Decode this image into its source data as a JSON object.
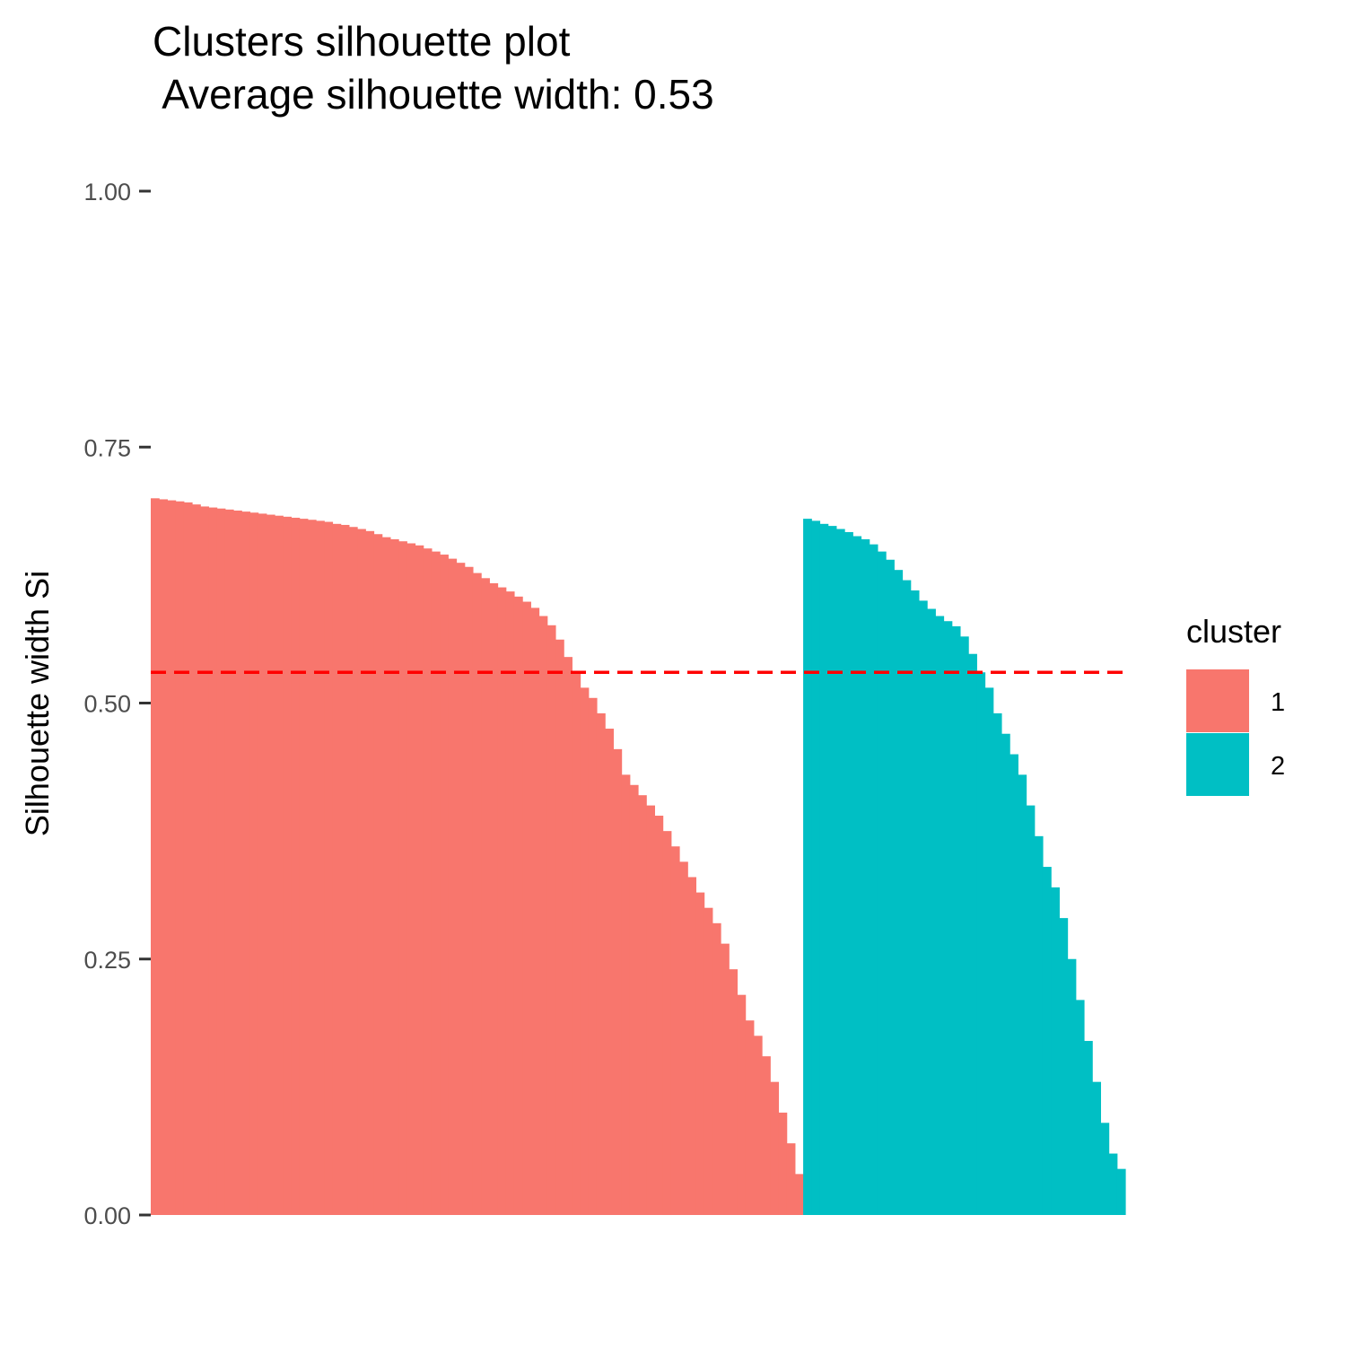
{
  "chart_data": {
    "type": "bar",
    "title": "Clusters silhouette plot",
    "subtitle": "Average silhouette width: 0.53",
    "xlabel": "",
    "ylabel": "Silhouette width Si",
    "ylim": [
      0,
      1
    ],
    "yticks": [
      "0.00",
      "0.25",
      "0.50",
      "0.75",
      "1.00"
    ],
    "grid": false,
    "average_line": {
      "value": 0.53,
      "color": "#ff0000",
      "style": "dashed"
    },
    "legend": {
      "title": "cluster",
      "position": "right"
    },
    "series": [
      {
        "name": "1",
        "color": "#f8766d",
        "profile": [
          [
            0,
            0.7
          ],
          [
            0.1,
            0.685
          ],
          [
            0.2,
            0.675
          ],
          [
            0.3,
            0.655
          ],
          [
            0.4,
            0.62
          ],
          [
            0.5,
            0.575
          ],
          [
            0.6,
            0.48
          ],
          [
            0.7,
            0.4
          ],
          [
            0.8,
            0.3
          ],
          [
            0.9,
            0.19
          ],
          [
            0.95,
            0.11
          ],
          [
            1,
            0.03
          ]
        ],
        "values": [
          0.7,
          0.699,
          0.698,
          0.697,
          0.696,
          0.694,
          0.692,
          0.691,
          0.69,
          0.689,
          0.688,
          0.687,
          0.686,
          0.685,
          0.684,
          0.683,
          0.682,
          0.681,
          0.68,
          0.679,
          0.678,
          0.677,
          0.675,
          0.674,
          0.672,
          0.67,
          0.668,
          0.665,
          0.662,
          0.66,
          0.658,
          0.656,
          0.654,
          0.651,
          0.648,
          0.645,
          0.641,
          0.637,
          0.633,
          0.627,
          0.622,
          0.617,
          0.613,
          0.609,
          0.604,
          0.599,
          0.593,
          0.585,
          0.576,
          0.562,
          0.545,
          0.53,
          0.515,
          0.505,
          0.49,
          0.475,
          0.455,
          0.43,
          0.42,
          0.41,
          0.4,
          0.39,
          0.375,
          0.36,
          0.345,
          0.33,
          0.315,
          0.3,
          0.285,
          0.265,
          0.24,
          0.215,
          0.19,
          0.175,
          0.155,
          0.13,
          0.1,
          0.07,
          0.04
        ]
      },
      {
        "name": "2",
        "color": "#00bfc4",
        "profile": [
          [
            0,
            0.68
          ],
          [
            0.1,
            0.67
          ],
          [
            0.2,
            0.645
          ],
          [
            0.3,
            0.6
          ],
          [
            0.4,
            0.57
          ],
          [
            0.5,
            0.515
          ],
          [
            0.6,
            0.44
          ],
          [
            0.7,
            0.35
          ],
          [
            0.8,
            0.27
          ],
          [
            0.9,
            0.15
          ],
          [
            1,
            0.045
          ]
        ],
        "values": [
          0.68,
          0.678,
          0.675,
          0.673,
          0.67,
          0.667,
          0.663,
          0.66,
          0.655,
          0.648,
          0.64,
          0.63,
          0.62,
          0.61,
          0.6,
          0.592,
          0.585,
          0.58,
          0.575,
          0.565,
          0.548,
          0.53,
          0.515,
          0.49,
          0.47,
          0.45,
          0.43,
          0.4,
          0.37,
          0.34,
          0.32,
          0.29,
          0.25,
          0.21,
          0.17,
          0.13,
          0.09,
          0.06,
          0.045
        ]
      }
    ]
  }
}
